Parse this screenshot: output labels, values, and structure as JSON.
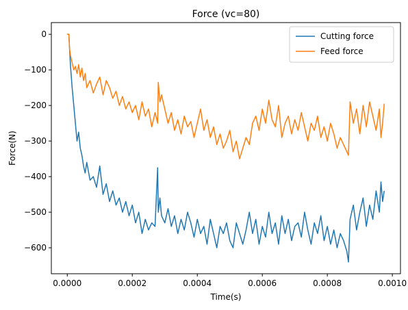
{
  "chart_data": {
    "type": "line",
    "title": "Force (vc=80)",
    "xlabel": "Time(s)",
    "ylabel": "Force(N)",
    "xlim": [
      -4.9e-05,
      0.001025
    ],
    "ylim": [
      -673,
      33
    ],
    "xticks": [
      0,
      0.0002,
      0.0004,
      0.0006,
      0.0008,
      0.001
    ],
    "xtick_labels": [
      "0.0000",
      "0.0002",
      "0.0004",
      "0.0006",
      "0.0008",
      "0.0010"
    ],
    "yticks": [
      0,
      -100,
      -200,
      -300,
      -400,
      -500,
      -600
    ],
    "ytick_labels": [
      "0",
      "−100",
      "−200",
      "−300",
      "−400",
      "−500",
      "−600"
    ],
    "grid": false,
    "legend_position": "top-right",
    "series": [
      {
        "name": "Cutting force",
        "color": "#1f77b4",
        "x": [
          0,
          5e-06,
          7e-06,
          1e-05,
          1.5e-05,
          2e-05,
          2.5e-05,
          3e-05,
          3.5e-05,
          4e-05,
          4.5e-05,
          5e-05,
          5.5e-05,
          6e-05,
          7e-05,
          8e-05,
          9e-05,
          0.0001,
          0.00011,
          0.00012,
          0.00013,
          0.00014,
          0.00015,
          0.00016,
          0.00017,
          0.00018,
          0.00019,
          0.0002,
          0.00021,
          0.00022,
          0.00023,
          0.00024,
          0.00025,
          0.00026,
          0.00027,
          0.000278,
          0.00028,
          0.000285,
          0.00029,
          0.0003,
          0.00031,
          0.00032,
          0.00033,
          0.00034,
          0.00035,
          0.00036,
          0.00037,
          0.00038,
          0.00039,
          0.0004,
          0.00041,
          0.00042,
          0.00043,
          0.00044,
          0.00045,
          0.00046,
          0.00047,
          0.00048,
          0.00049,
          0.0005,
          0.00051,
          0.00052,
          0.00053,
          0.00054,
          0.00055,
          0.00056,
          0.00057,
          0.00058,
          0.00059,
          0.0006,
          0.00061,
          0.00062,
          0.00063,
          0.00064,
          0.00065,
          0.00066,
          0.00067,
          0.00068,
          0.00069,
          0.0007,
          0.00071,
          0.00072,
          0.00073,
          0.00074,
          0.00075,
          0.00076,
          0.00077,
          0.00078,
          0.00079,
          0.0008,
          0.00081,
          0.00082,
          0.00083,
          0.00084,
          0.00085,
          0.00086,
          0.000865,
          0.00087,
          0.00088,
          0.00089,
          0.0009,
          0.00091,
          0.00092,
          0.00093,
          0.00094,
          0.00095,
          0.00096,
          0.000965,
          0.00097,
          0.000975
        ],
        "y": [
          0,
          0,
          -40,
          -90,
          -150,
          -200,
          -250,
          -300,
          -275,
          -320,
          -340,
          -370,
          -390,
          -360,
          -410,
          -400,
          -430,
          -370,
          -450,
          -420,
          -470,
          -440,
          -480,
          -460,
          -500,
          -470,
          -510,
          -480,
          -530,
          -500,
          -560,
          -520,
          -550,
          -530,
          -540,
          -375,
          -500,
          -460,
          -510,
          -530,
          -490,
          -540,
          -510,
          -560,
          -520,
          -550,
          -500,
          -530,
          -570,
          -520,
          -560,
          -540,
          -590,
          -520,
          -560,
          -600,
          -540,
          -560,
          -530,
          -580,
          -600,
          -530,
          -560,
          -590,
          -550,
          -500,
          -560,
          -520,
          -590,
          -540,
          -570,
          -500,
          -560,
          -530,
          -590,
          -510,
          -560,
          -520,
          -580,
          -540,
          -530,
          -570,
          -500,
          -550,
          -590,
          -530,
          -560,
          -510,
          -580,
          -540,
          -590,
          -550,
          -600,
          -560,
          -580,
          -610,
          -640,
          -520,
          -480,
          -550,
          -500,
          -460,
          -540,
          -480,
          -520,
          -440,
          -500,
          -415,
          -470,
          -440
        ]
      },
      {
        "name": "Feed force",
        "color": "#ff7f0e",
        "x": [
          0,
          5e-06,
          7e-06,
          1e-05,
          1.5e-05,
          2e-05,
          2.5e-05,
          3e-05,
          3.5e-05,
          4e-05,
          4.5e-05,
          5e-05,
          5.5e-05,
          6e-05,
          7e-05,
          8e-05,
          9e-05,
          0.0001,
          0.00011,
          0.00012,
          0.00013,
          0.00014,
          0.00015,
          0.00016,
          0.00017,
          0.00018,
          0.00019,
          0.0002,
          0.00021,
          0.00022,
          0.00023,
          0.00024,
          0.00025,
          0.00026,
          0.00027,
          0.000278,
          0.00028,
          0.000285,
          0.00029,
          0.0003,
          0.00031,
          0.00032,
          0.00033,
          0.00034,
          0.00035,
          0.00036,
          0.00037,
          0.00038,
          0.00039,
          0.0004,
          0.00041,
          0.00042,
          0.00043,
          0.00044,
          0.00045,
          0.00046,
          0.00047,
          0.00048,
          0.00049,
          0.0005,
          0.00051,
          0.00052,
          0.00053,
          0.00054,
          0.00055,
          0.00056,
          0.00057,
          0.00058,
          0.00059,
          0.0006,
          0.00061,
          0.00062,
          0.00063,
          0.00064,
          0.00065,
          0.00066,
          0.00067,
          0.00068,
          0.00069,
          0.0007,
          0.00071,
          0.00072,
          0.00073,
          0.00074,
          0.00075,
          0.00076,
          0.00077,
          0.00078,
          0.00079,
          0.0008,
          0.00081,
          0.00082,
          0.00083,
          0.00084,
          0.00085,
          0.00086,
          0.000865,
          0.00087,
          0.00088,
          0.00089,
          0.0009,
          0.00091,
          0.00092,
          0.00093,
          0.00094,
          0.00095,
          0.00096,
          0.000965,
          0.00097,
          0.000975
        ],
        "y": [
          0,
          0,
          -40,
          -60,
          -80,
          -100,
          -90,
          -110,
          -85,
          -120,
          -95,
          -130,
          -110,
          -150,
          -130,
          -165,
          -140,
          -120,
          -170,
          -130,
          -150,
          -180,
          -160,
          -200,
          -175,
          -210,
          -190,
          -220,
          -200,
          -240,
          -190,
          -230,
          -210,
          -260,
          -220,
          -250,
          -135,
          -190,
          -170,
          -210,
          -250,
          -220,
          -270,
          -240,
          -280,
          -230,
          -260,
          -245,
          -290,
          -250,
          -210,
          -270,
          -240,
          -290,
          -260,
          -310,
          -280,
          -320,
          -300,
          -270,
          -330,
          -300,
          -350,
          -320,
          -290,
          -310,
          -250,
          -230,
          -270,
          -210,
          -250,
          -185,
          -240,
          -260,
          -200,
          -290,
          -250,
          -230,
          -280,
          -240,
          -270,
          -220,
          -260,
          -300,
          -250,
          -270,
          -230,
          -290,
          -260,
          -300,
          -250,
          -280,
          -320,
          -290,
          -310,
          -330,
          -340,
          -190,
          -250,
          -210,
          -280,
          -200,
          -260,
          -190,
          -230,
          -270,
          -210,
          -290,
          -250,
          -195
        ]
      }
    ]
  }
}
